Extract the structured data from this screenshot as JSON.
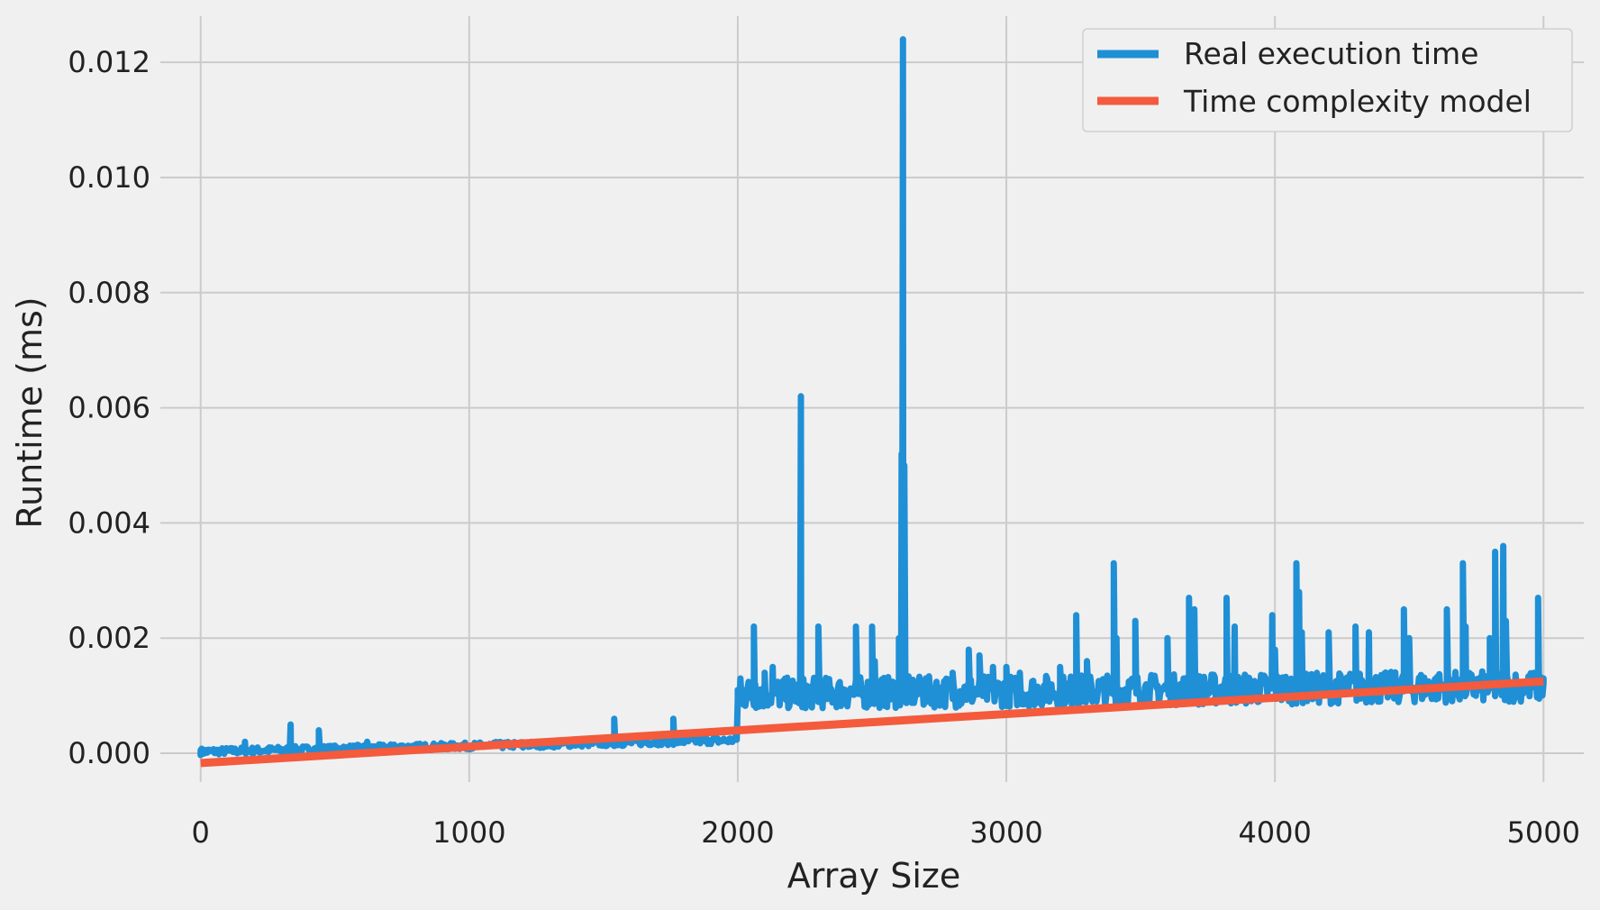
{
  "chart_data": {
    "type": "line",
    "title": "",
    "xlabel": "Array Size",
    "ylabel": "Runtime (ms)",
    "xlim": [
      -150,
      5150
    ],
    "ylim": [
      -0.0005,
      0.0128
    ],
    "xticks": [
      0,
      1000,
      2000,
      3000,
      4000,
      5000
    ],
    "xtick_labels": [
      "0",
      "1000",
      "2000",
      "3000",
      "4000",
      "5000"
    ],
    "yticks": [
      0.0,
      0.002,
      0.004,
      0.006,
      0.008,
      0.01,
      0.012
    ],
    "ytick_labels": [
      "0.000",
      "0.002",
      "0.004",
      "0.006",
      "0.008",
      "0.010",
      "0.012"
    ],
    "grid": true,
    "legend_position": "top-right",
    "series": [
      {
        "name": "Real execution time",
        "color": "#1f8fd6",
        "style": "noisy",
        "x": [
          0,
          20,
          50,
          100,
          165,
          170,
          250,
          335,
          340,
          440,
          445,
          600,
          620,
          720,
          800,
          1000,
          1200,
          1400,
          1540,
          1545,
          1600,
          1760,
          1765,
          1850,
          1995,
          2000,
          2010,
          2020,
          2060,
          2065,
          2100,
          2130,
          2200,
          2235,
          2240,
          2245,
          2300,
          2310,
          2400,
          2440,
          2450,
          2500,
          2510,
          2600,
          2610,
          2615,
          2620,
          2625,
          2700,
          2800,
          2860,
          2900,
          2950,
          3000,
          3050,
          3200,
          3260,
          3300,
          3400,
          3410,
          3480,
          3600,
          3680,
          3700,
          3820,
          3850,
          3990,
          4000,
          4080,
          4090,
          4100,
          4200,
          4300,
          4350,
          4480,
          4500,
          4640,
          4700,
          4710,
          4800,
          4820,
          4850,
          4860,
          4980,
          5000
        ],
        "values": [
          5e-05,
          2e-05,
          3e-05,
          5e-05,
          0.0002,
          5e-05,
          8e-05,
          0.0005,
          0.0001,
          0.0004,
          0.0001,
          5e-05,
          0.0002,
          0.00015,
          0.0001,
          0.0001,
          0.0001,
          0.00015,
          0.0006,
          0.0002,
          0.0002,
          0.0006,
          0.0002,
          0.0003,
          0.0004,
          0.0011,
          0.0013,
          0.0011,
          0.0022,
          0.0012,
          0.0014,
          0.0015,
          0.0011,
          0.0062,
          0.0008,
          0.0012,
          0.0022,
          0.001,
          0.0011,
          0.0022,
          0.0012,
          0.0022,
          0.0016,
          0.002,
          0.0052,
          0.0124,
          0.005,
          0.0012,
          0.0013,
          0.0014,
          0.0018,
          0.0017,
          0.0015,
          0.0015,
          0.0014,
          0.0015,
          0.0024,
          0.0016,
          0.0033,
          0.002,
          0.0023,
          0.002,
          0.0027,
          0.0025,
          0.0027,
          0.0022,
          0.0024,
          0.0018,
          0.0033,
          0.0028,
          0.0021,
          0.0021,
          0.0022,
          0.0021,
          0.0025,
          0.002,
          0.0025,
          0.0033,
          0.0022,
          0.002,
          0.0035,
          0.0036,
          0.0023,
          0.0027,
          0.0013
        ]
      },
      {
        "name": "Time complexity model",
        "color": "#f45a3c",
        "style": "line",
        "x": [
          0,
          5000
        ],
        "values": [
          -0.00017,
          0.00125
        ]
      }
    ]
  }
}
